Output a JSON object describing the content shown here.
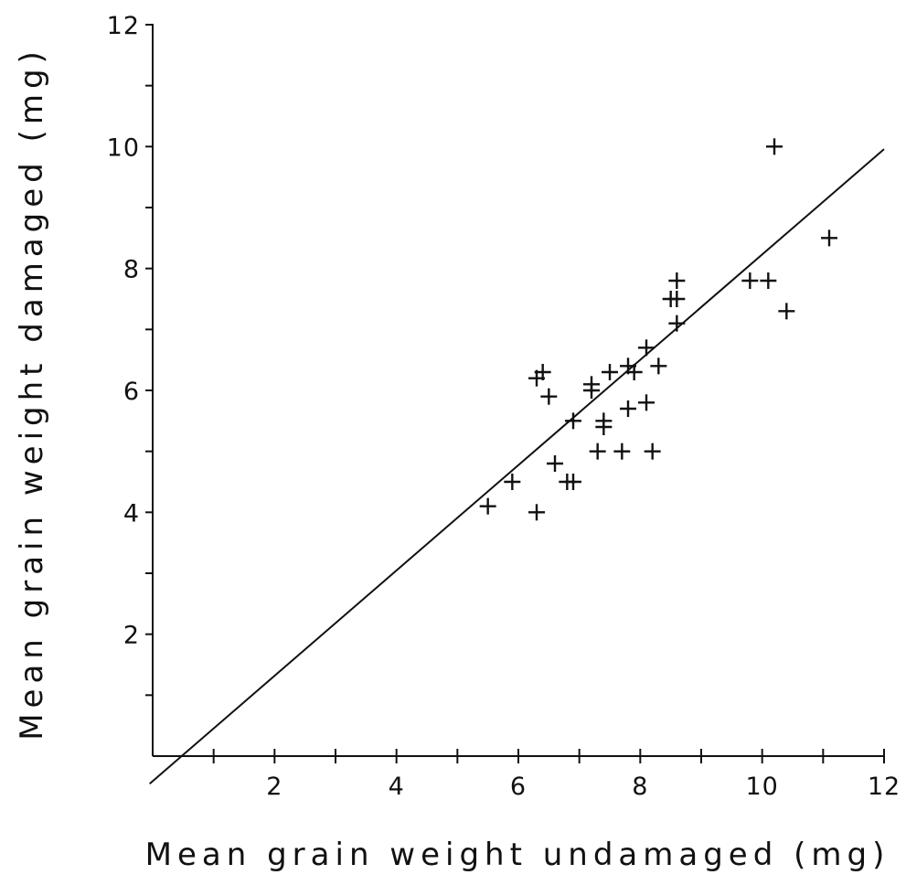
{
  "chart_data": {
    "type": "scatter",
    "title": "",
    "xlabel": "Mean grain weight undamaged (mg)",
    "ylabel": "Mean grain weight damaged (mg)",
    "xlim": [
      0,
      12
    ],
    "ylim": [
      0,
      12
    ],
    "x_ticks": [
      2,
      4,
      6,
      8,
      10,
      12
    ],
    "y_ticks": [
      2,
      4,
      6,
      8,
      10,
      12
    ],
    "grid": false,
    "marker": "+",
    "colors": {
      "ink": "#111111",
      "background": "#ffffff"
    },
    "points": [
      {
        "x": 5.5,
        "y": 4.1
      },
      {
        "x": 5.9,
        "y": 4.5
      },
      {
        "x": 6.3,
        "y": 4.0
      },
      {
        "x": 6.3,
        "y": 6.2
      },
      {
        "x": 6.4,
        "y": 6.3
      },
      {
        "x": 6.5,
        "y": 5.9
      },
      {
        "x": 6.6,
        "y": 4.8
      },
      {
        "x": 6.8,
        "y": 4.5
      },
      {
        "x": 6.9,
        "y": 4.5
      },
      {
        "x": 6.9,
        "y": 5.5
      },
      {
        "x": 7.2,
        "y": 6.1
      },
      {
        "x": 7.2,
        "y": 6.0
      },
      {
        "x": 7.3,
        "y": 5.0
      },
      {
        "x": 7.4,
        "y": 5.5
      },
      {
        "x": 7.4,
        "y": 5.4
      },
      {
        "x": 7.5,
        "y": 6.3
      },
      {
        "x": 7.7,
        "y": 5.0
      },
      {
        "x": 7.8,
        "y": 5.7
      },
      {
        "x": 7.8,
        "y": 6.4
      },
      {
        "x": 7.9,
        "y": 6.3
      },
      {
        "x": 8.1,
        "y": 6.7
      },
      {
        "x": 8.1,
        "y": 5.8
      },
      {
        "x": 8.2,
        "y": 5.0
      },
      {
        "x": 8.3,
        "y": 6.4
      },
      {
        "x": 8.5,
        "y": 7.5
      },
      {
        "x": 8.6,
        "y": 7.5
      },
      {
        "x": 8.6,
        "y": 7.1
      },
      {
        "x": 8.6,
        "y": 7.8
      },
      {
        "x": 9.8,
        "y": 7.8
      },
      {
        "x": 10.1,
        "y": 7.8
      },
      {
        "x": 10.2,
        "y": 10.0
      },
      {
        "x": 10.4,
        "y": 7.3
      },
      {
        "x": 11.1,
        "y": 8.5
      }
    ],
    "fit_line": {
      "slope": 0.864,
      "intercept": -0.41,
      "x_range": [
        -0.05,
        12.0
      ]
    }
  }
}
